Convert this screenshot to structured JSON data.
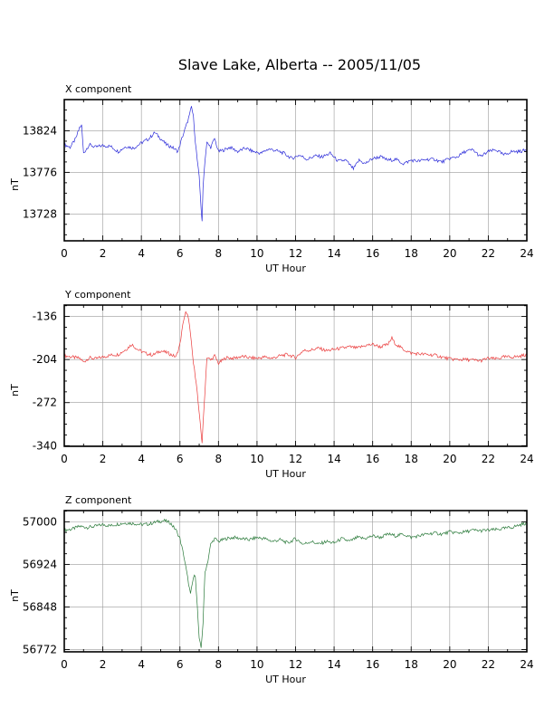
{
  "title": "Slave Lake, Alberta -- 2005/11/05",
  "chart_data": [
    {
      "type": "line",
      "title": "X component",
      "xlabel": "UT Hour",
      "ylabel": "nT",
      "xlim": [
        0,
        24
      ],
      "xticks": [
        0,
        2,
        4,
        6,
        8,
        10,
        12,
        14,
        16,
        18,
        20,
        22,
        24
      ],
      "ylim": [
        13697,
        13860
      ],
      "yticks": [
        13728,
        13776,
        13824
      ],
      "grid": true,
      "color": "#2b2bd9",
      "series": [
        {
          "x": [
            0,
            0.3,
            0.6,
            0.8,
            0.9,
            1.0,
            1.3,
            1.6,
            2.0,
            2.4,
            2.8,
            3.2,
            3.6,
            4.0,
            4.4,
            4.7,
            5.0,
            5.3,
            5.6,
            5.9,
            6.1,
            6.3,
            6.5,
            6.6,
            6.7,
            6.8,
            6.9,
            7.0,
            7.1,
            7.15,
            7.2,
            7.3,
            7.4,
            7.6,
            7.8,
            8.0,
            8.3,
            8.6,
            9.0,
            9.4,
            9.8,
            10.2,
            10.6,
            11.0,
            11.4,
            11.8,
            12.2,
            12.6,
            13.0,
            13.4,
            13.8,
            14.2,
            14.6,
            15.0,
            15.3,
            15.6,
            16.0,
            16.4,
            16.8,
            17.2,
            17.6,
            18.0,
            18.4,
            18.8,
            19.2,
            19.6,
            20.0,
            20.4,
            20.8,
            21.2,
            21.6,
            22.0,
            22.4,
            22.8,
            23.2,
            23.6,
            24.0
          ],
          "y": [
            13808,
            13805,
            13815,
            13828,
            13830,
            13798,
            13808,
            13805,
            13807,
            13806,
            13800,
            13806,
            13804,
            13810,
            13815,
            13822,
            13815,
            13808,
            13805,
            13800,
            13815,
            13828,
            13842,
            13852,
            13840,
            13812,
            13790,
            13770,
            13735,
            13718,
            13760,
            13790,
            13810,
            13805,
            13815,
            13800,
            13802,
            13805,
            13800,
            13804,
            13800,
            13798,
            13803,
            13801,
            13798,
            13792,
            13796,
            13791,
            13795,
            13794,
            13798,
            13789,
            13790,
            13780,
            13790,
            13786,
            13792,
            13794,
            13790,
            13791,
            13786,
            13790,
            13789,
            13791,
            13791,
            13788,
            13792,
            13794,
            13800,
            13802,
            13794,
            13800,
            13802,
            13796,
            13800,
            13800,
            13802
          ]
        }
      ]
    },
    {
      "type": "line",
      "title": "Y component",
      "xlabel": "UT Hour",
      "ylabel": "nT",
      "xlim": [
        0,
        24
      ],
      "xticks": [
        0,
        2,
        4,
        6,
        8,
        10,
        12,
        14,
        16,
        18,
        20,
        22,
        24
      ],
      "ylim": [
        -341,
        -118
      ],
      "yticks": [
        -340,
        -272,
        -204,
        -136
      ],
      "grid": true,
      "color": "#ea3a3a",
      "series": [
        {
          "x": [
            0,
            0.4,
            0.8,
            1.0,
            1.3,
            1.6,
            2.0,
            2.4,
            2.8,
            3.2,
            3.5,
            3.8,
            4.2,
            4.6,
            5.0,
            5.4,
            5.8,
            6.0,
            6.2,
            6.3,
            6.45,
            6.6,
            6.7,
            6.85,
            7.0,
            7.1,
            7.15,
            7.25,
            7.4,
            7.6,
            7.8,
            8.0,
            8.4,
            8.8,
            9.2,
            9.6,
            10.0,
            10.4,
            10.8,
            11.2,
            11.6,
            12.0,
            12.4,
            12.8,
            13.2,
            13.6,
            14.0,
            14.4,
            14.8,
            15.2,
            15.6,
            16.0,
            16.4,
            16.8,
            17.0,
            17.1,
            17.3,
            17.6,
            18.0,
            18.4,
            18.8,
            19.2,
            19.6,
            20.0,
            20.4,
            20.8,
            21.2,
            21.6,
            22.0,
            22.4,
            22.8,
            23.2,
            23.6,
            24.0
          ],
          "y": [
            -198,
            -200,
            -202,
            -208,
            -201,
            -203,
            -200,
            -197,
            -196,
            -188,
            -180,
            -188,
            -194,
            -197,
            -190,
            -194,
            -200,
            -180,
            -140,
            -130,
            -138,
            -180,
            -210,
            -240,
            -290,
            -320,
            -335,
            -280,
            -200,
            -205,
            -198,
            -210,
            -201,
            -202,
            -199,
            -201,
            -202,
            -200,
            -202,
            -198,
            -196,
            -201,
            -190,
            -189,
            -186,
            -190,
            -188,
            -186,
            -184,
            -186,
            -182,
            -180,
            -184,
            -180,
            -170,
            -176,
            -182,
            -188,
            -194,
            -195,
            -196,
            -197,
            -200,
            -203,
            -204,
            -204,
            -205,
            -206,
            -202,
            -203,
            -200,
            -200,
            -199,
            -196
          ]
        }
      ]
    },
    {
      "type": "line",
      "title": "Z component",
      "xlabel": "UT Hour",
      "ylabel": "nT",
      "xlim": [
        0,
        24
      ],
      "xticks": [
        0,
        2,
        4,
        6,
        8,
        10,
        12,
        14,
        16,
        18,
        20,
        22,
        24
      ],
      "ylim": [
        56768,
        57020
      ],
      "yticks": [
        56772,
        56848,
        56924,
        57000
      ],
      "grid": true,
      "color": "#2a7a3a",
      "series": [
        {
          "x": [
            0,
            0.4,
            0.8,
            1.2,
            1.6,
            2.0,
            2.4,
            2.8,
            3.2,
            3.6,
            4.0,
            4.4,
            4.8,
            5.2,
            5.5,
            5.8,
            6.0,
            6.2,
            6.4,
            6.55,
            6.7,
            6.8,
            6.9,
            7.0,
            7.1,
            7.2,
            7.3,
            7.45,
            7.6,
            7.8,
            8.0,
            8.4,
            8.8,
            9.2,
            9.6,
            10.0,
            10.4,
            10.8,
            11.2,
            11.6,
            12.0,
            12.4,
            12.8,
            13.2,
            13.6,
            14.0,
            14.4,
            14.8,
            15.2,
            15.6,
            16.0,
            16.4,
            16.8,
            17.2,
            17.6,
            18.0,
            18.4,
            18.8,
            19.2,
            19.6,
            20.0,
            20.4,
            20.8,
            21.2,
            21.6,
            22.0,
            22.4,
            22.8,
            23.2,
            23.6,
            24.0
          ],
          "y": [
            56985,
            56987,
            56992,
            56990,
            56992,
            56995,
            56993,
            56996,
            56998,
            56997,
            56995,
            56996,
            57000,
            57002,
            56998,
            56985,
            56970,
            56940,
            56900,
            56870,
            56900,
            56905,
            56850,
            56790,
            56775,
            56820,
            56910,
            56930,
            56960,
            56970,
            56965,
            56970,
            56972,
            56970,
            56968,
            56972,
            56970,
            56965,
            56968,
            56962,
            56970,
            56960,
            56965,
            56960,
            56965,
            56962,
            56970,
            56965,
            56972,
            56970,
            56975,
            56972,
            56978,
            56975,
            56978,
            56972,
            56975,
            56978,
            56980,
            56978,
            56982,
            56980,
            56982,
            56985,
            56984,
            56985,
            56986,
            56988,
            56990,
            56994,
            56998
          ]
        }
      ]
    }
  ]
}
